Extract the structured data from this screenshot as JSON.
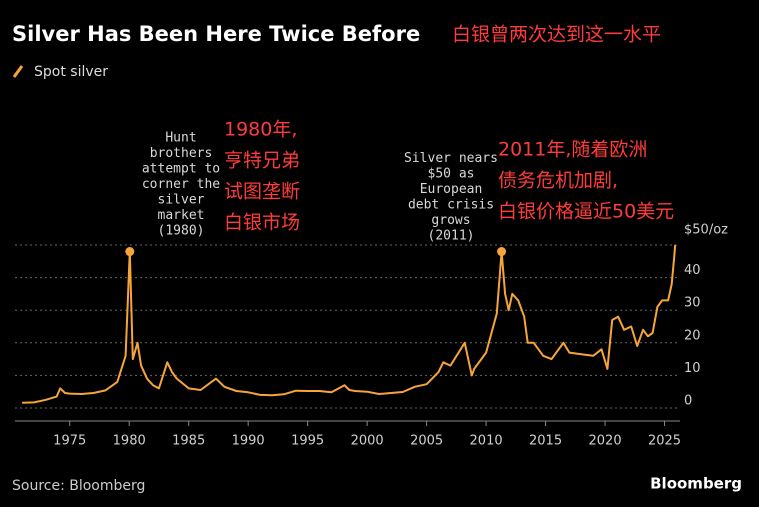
{
  "chart_data": {
    "type": "line",
    "title": "Silver Has Been Here Twice Before",
    "title_zh": "白银曾两次达到这一水平",
    "source": "Source: Bloomberg",
    "brand": "Bloomberg",
    "series": [
      {
        "name": "Spot silver",
        "color": "#f7a53a",
        "x": [
          1971,
          1972,
          1973,
          1973.9,
          1974.2,
          1974.6,
          1975,
          1976,
          1977,
          1978,
          1979,
          1979.7,
          1980.05,
          1980.3,
          1980.7,
          1981,
          1981.5,
          1982,
          1982.5,
          1983.2,
          1983.6,
          1984,
          1985,
          1986,
          1987.3,
          1988,
          1989,
          1990,
          1991,
          1992,
          1993,
          1994,
          1995,
          1996,
          1997,
          1998.1,
          1998.5,
          1999,
          2000,
          2001,
          2002,
          2003,
          2004,
          2005,
          2006,
          2006.4,
          2007,
          2008.2,
          2008.8,
          2009,
          2010,
          2010.9,
          2011.3,
          2011.6,
          2011.9,
          2012.2,
          2012.7,
          2013.2,
          2013.5,
          2014,
          2014.8,
          2015.5,
          2016.5,
          2017,
          2018,
          2019,
          2019.7,
          2020.2,
          2020.6,
          2021.1,
          2021.6,
          2022.2,
          2022.7,
          2023.2,
          2023.6,
          2024,
          2024.4,
          2024.8,
          2025.3,
          2025.6,
          2025.8,
          2025.9
        ],
        "values": [
          1.6,
          1.7,
          2.5,
          3.5,
          6,
          4.6,
          4.4,
          4.3,
          4.6,
          5.4,
          8,
          16,
          48,
          15,
          20,
          13,
          9,
          7,
          6,
          14,
          11,
          9,
          6,
          5.5,
          9,
          6.5,
          5.2,
          4.8,
          4,
          3.9,
          4.2,
          5.3,
          5.2,
          5.2,
          4.8,
          7,
          5.5,
          5.2,
          5,
          4.3,
          4.6,
          4.9,
          6.5,
          7.3,
          11,
          14,
          13,
          20,
          10,
          12,
          17,
          29,
          48,
          35,
          30,
          35,
          33,
          28,
          20,
          20,
          16,
          15,
          20,
          17,
          16.5,
          16,
          18,
          12,
          27,
          28,
          24,
          25,
          19,
          24,
          22,
          23,
          31,
          33,
          33,
          38,
          46,
          50
        ]
      }
    ],
    "xlim": [
      1970.4,
      2026.3
    ],
    "xticks": [
      1975,
      1980,
      1985,
      1990,
      1995,
      2000,
      2005,
      2010,
      2015,
      2020,
      2025
    ],
    "ylim": [
      -4,
      52
    ],
    "yticks": [
      0,
      10,
      20,
      30,
      40,
      {
        "value": 50,
        "label": "$50/oz"
      }
    ],
    "grid": true,
    "annotations": [
      {
        "lines": [
          "Hunt",
          "brothers",
          "attempt to",
          "corner the",
          "silver",
          "market",
          "(1980)"
        ],
        "point": 12
      },
      {
        "lines": [
          "Silver nears",
          "$50 as",
          "European",
          "debt crisis",
          "grows",
          "(2011)"
        ],
        "point": 52
      }
    ],
    "annotations_zh": [
      {
        "lines": [
          "1980年,",
          "亨特兄弟",
          "试图垄断",
          "白银市场"
        ]
      },
      {
        "lines": [
          "2011年,随着欧洲",
          "债务危机加剧,",
          "白银价格逼近50美元"
        ]
      }
    ]
  }
}
